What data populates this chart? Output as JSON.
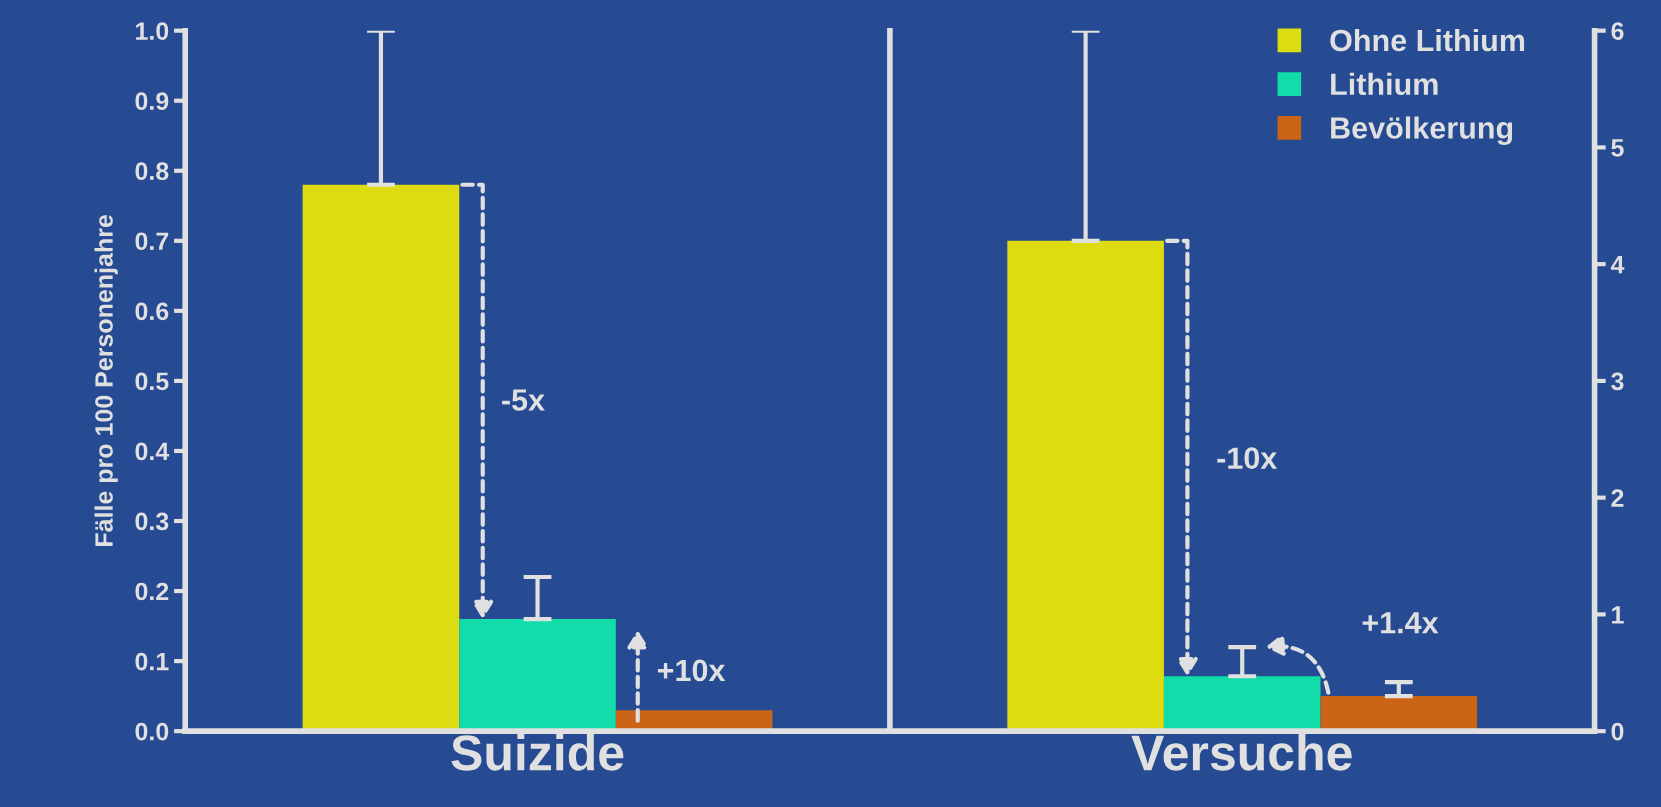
{
  "chart_data": [
    {
      "type": "bar",
      "stacked": true,
      "categories": [
        null,
        null,
        null
      ],
      "xlabel": "Suizide",
      "ylabel": "Fälle pro 100 Personenjahre",
      "ylim": [
        0,
        1.0
      ],
      "yticks": [
        {
          "value": 0,
          "label": "0.0"
        },
        0.1,
        0.2,
        0.3,
        0.4,
        0.5,
        0.6,
        0.7,
        0.8,
        0.9,
        {
          "value": 1,
          "label": "1.0"
        }
      ],
      "series": [
        {
          "color": "#dcdc10",
          "values": [
            0.78,
            null,
            null
          ],
          "errors": [
            [
              0.78,
              1.0
            ],
            null,
            null
          ]
        },
        {
          "color": "#12dcaa",
          "values": [
            null,
            0.16,
            null
          ],
          "errors": [
            null,
            [
              0.16,
              0.22
            ],
            null
          ]
        },
        {
          "color": "#cc6418",
          "values": [
            null,
            null,
            0.03
          ],
          "errors": [
            null,
            null,
            null
          ]
        }
      ],
      "annotations": [
        "-5x",
        "+10x"
      ]
    },
    {
      "type": "bar",
      "stacked": true,
      "categories": [
        null,
        null,
        null
      ],
      "xlabel": "Versuche",
      "ylim": [
        0,
        6
      ],
      "yticks": [
        0,
        1,
        2,
        3,
        4,
        5,
        6
      ],
      "legend": "top right",
      "series": [
        {
          "name": "Ohne Lithium",
          "color": "#dcdc10",
          "values": [
            4.2,
            null,
            null
          ],
          "errors": [
            [
              4.2,
              6.0
            ],
            null,
            null
          ]
        },
        {
          "name": "Lithium",
          "color": "#12dcaa",
          "values": [
            null,
            0.47,
            null
          ],
          "errors": [
            null,
            [
              0.47,
              0.72
            ],
            null
          ]
        },
        {
          "name": "Bevölkerung",
          "color": "#cc6418",
          "values": [
            null,
            null,
            0.3
          ],
          "errors": [
            null,
            null,
            [
              0.3,
              0.42
            ]
          ]
        }
      ],
      "annotations": [
        "-10x",
        "+1.4x"
      ]
    }
  ]
}
